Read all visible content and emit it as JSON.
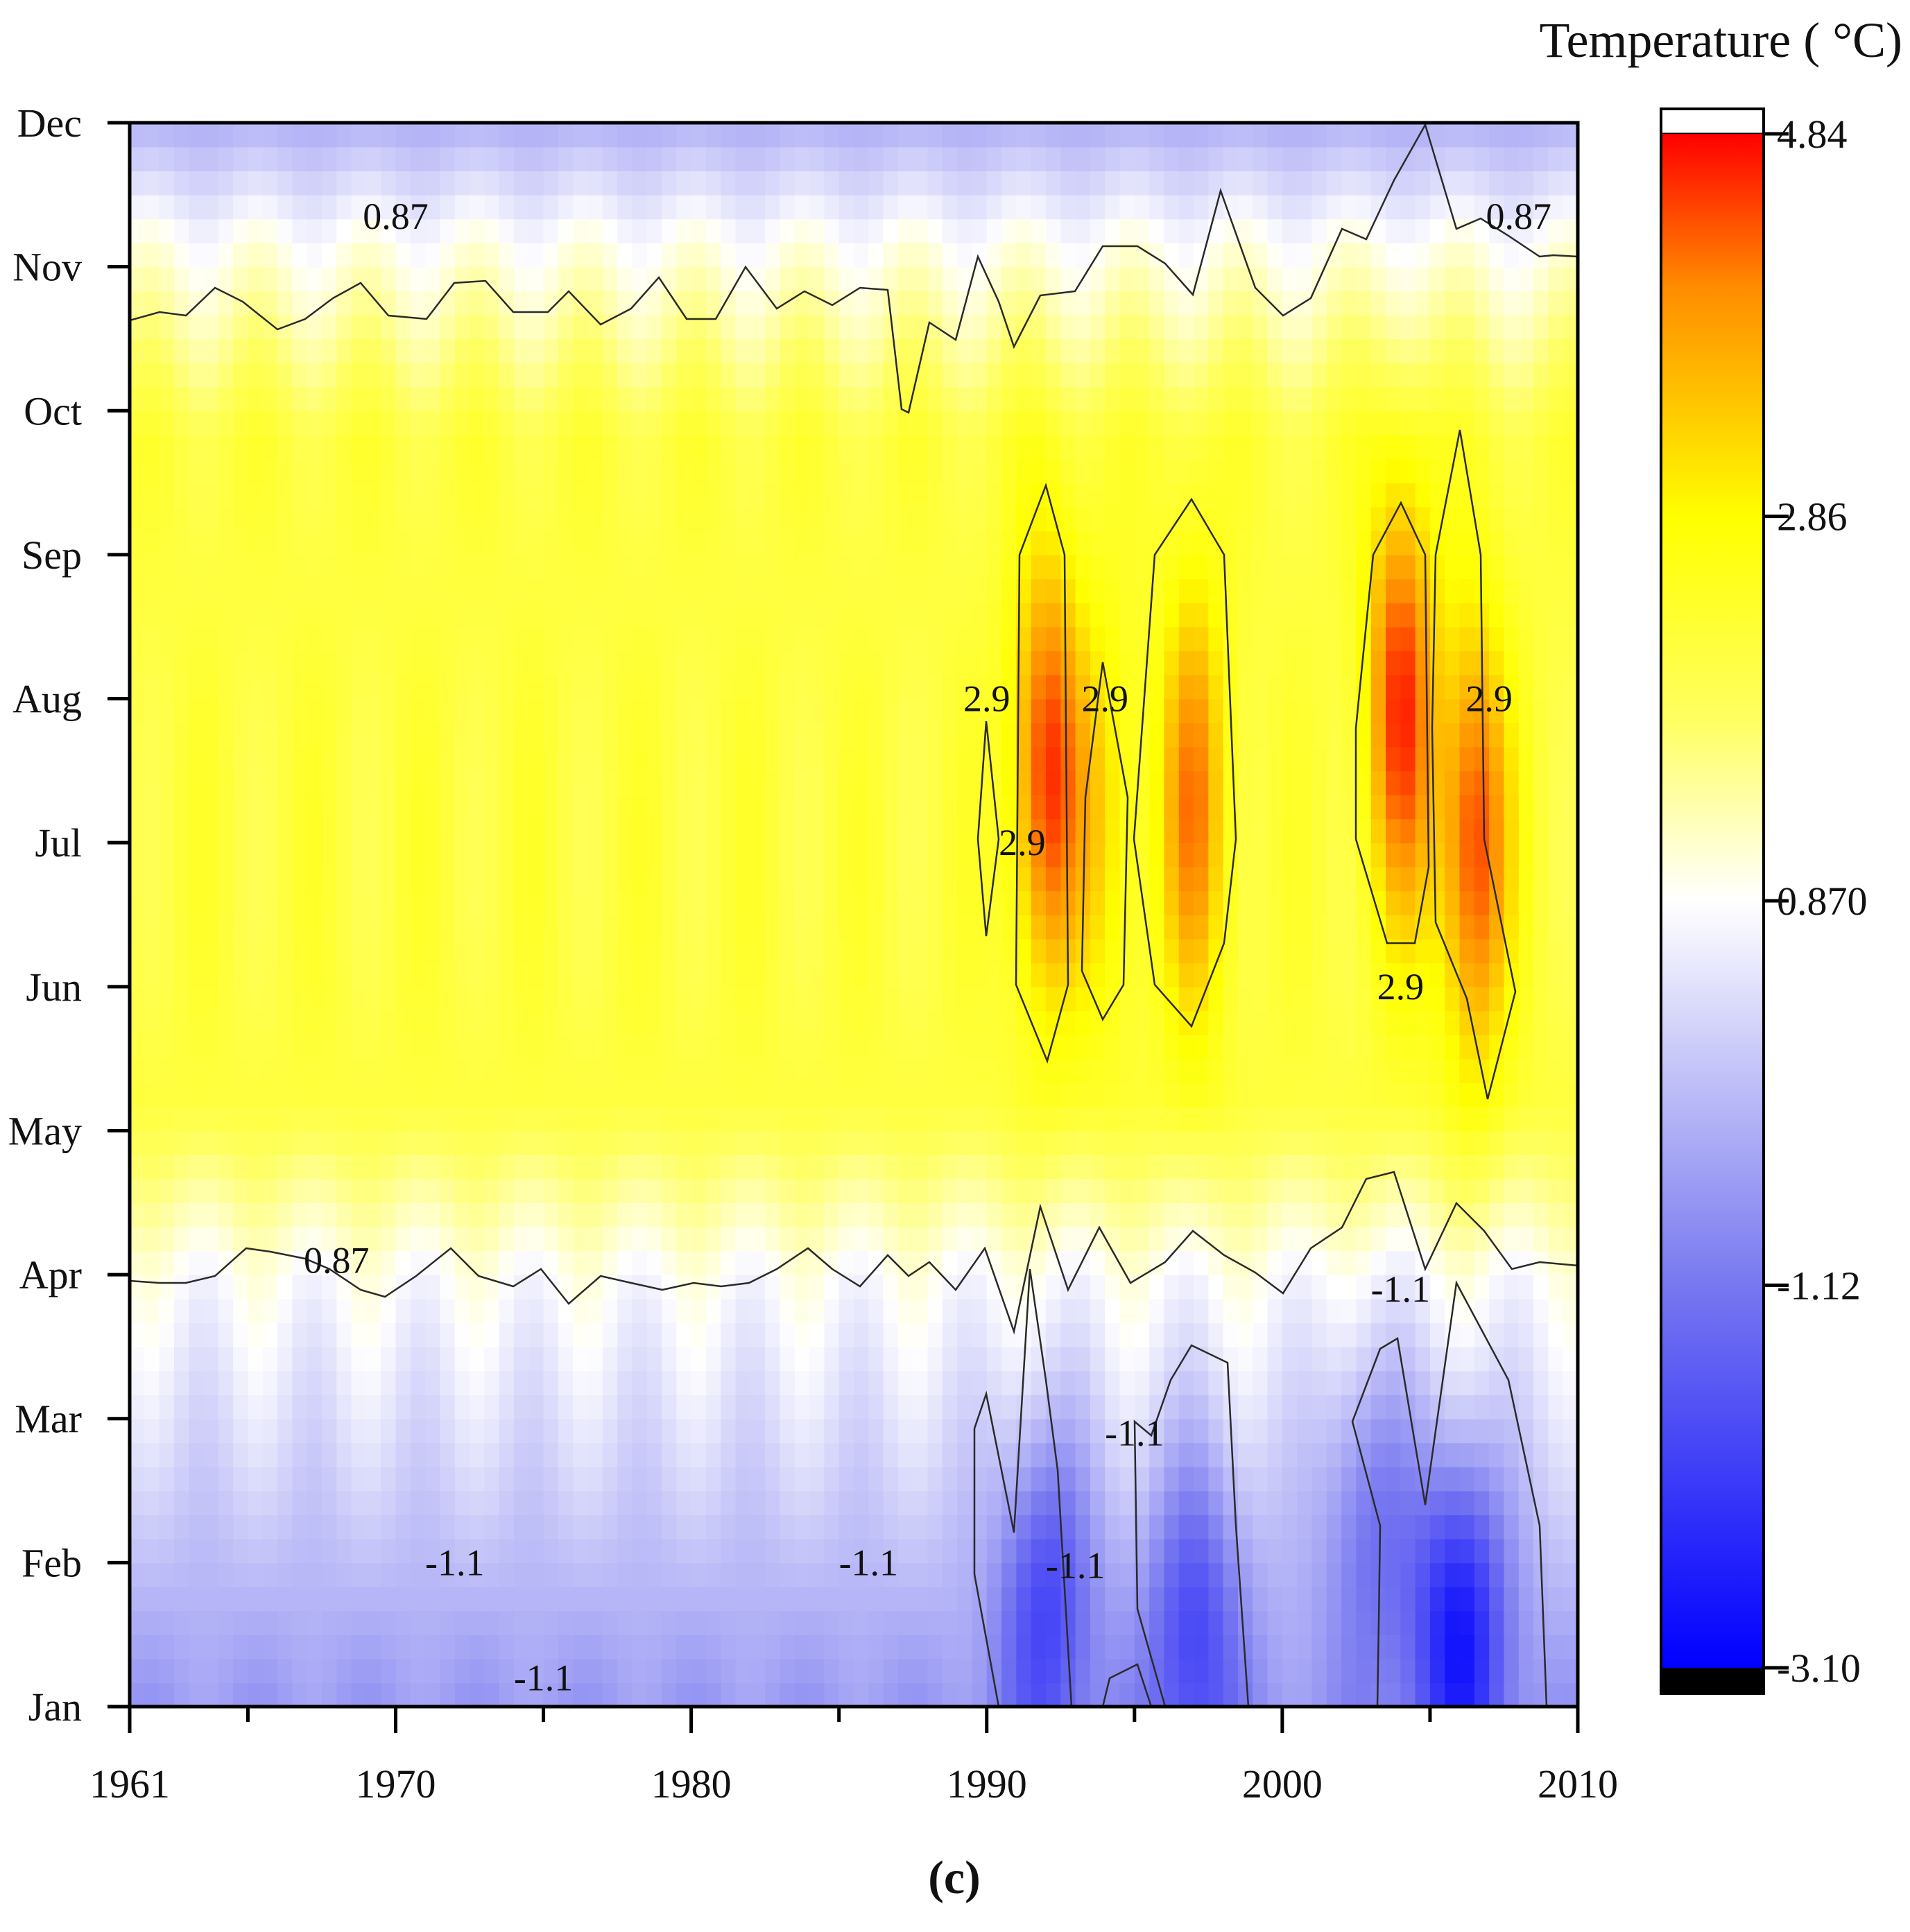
{
  "chart_data": {
    "type": "heatmap",
    "title": "Temperature ( °C)",
    "caption": "(c)",
    "xlabel": "",
    "ylabel": "",
    "x_ticks": [
      1961,
      1970,
      1980,
      1990,
      2000,
      2010
    ],
    "x_range": [
      1961,
      2010
    ],
    "y_ticks": [
      "Jan",
      "Feb",
      "Mar",
      "Apr",
      "May",
      "Jun",
      "Jul",
      "Aug",
      "Sep",
      "Oct",
      "Nov",
      "Dec"
    ],
    "y_range": [
      1,
      12
    ],
    "colorbar": {
      "min": -3.1,
      "max": 4.84,
      "tick_values": [
        4.84,
        2.86,
        0.87,
        -1.12,
        -3.1
      ],
      "tick_labels": [
        "4.84",
        "2.86",
        "0.870",
        "-1.12",
        "-3.10"
      ],
      "colors": {
        "below_min": "#000000",
        "min": "#0000ff",
        "low": "#7878f0",
        "mid": "#ffffff",
        "high": "#ffff00",
        "orange": "#ff8c00",
        "max": "#ff0000",
        "above_max": "#ffffff"
      }
    },
    "contour_levels": [
      0.87,
      2.9,
      -1.1
    ],
    "contour_labels": [
      {
        "text": "0.87",
        "year": 1970.0,
        "month": 11.35
      },
      {
        "text": "0.87",
        "year": 2008.0,
        "month": 11.35
      },
      {
        "text": "0.87",
        "year": 1968.0,
        "month": 4.1
      },
      {
        "text": "2.9",
        "year": 1990.0,
        "month": 8.0
      },
      {
        "text": "2.9",
        "year": 1991.2,
        "month": 7.0
      },
      {
        "text": "2.9",
        "year": 1994.0,
        "month": 8.0
      },
      {
        "text": "2.9",
        "year": 2004.0,
        "month": 6.0
      },
      {
        "text": "2.9",
        "year": 2007.0,
        "month": 8.0
      },
      {
        "text": "-1.1",
        "year": 2004.0,
        "month": 3.9
      },
      {
        "text": "-1.1",
        "year": 1995.0,
        "month": 2.9
      },
      {
        "text": "-1.1",
        "year": 1972.0,
        "month": 2.0
      },
      {
        "text": "-1.1",
        "year": 1986.0,
        "month": 2.0
      },
      {
        "text": "-1.1",
        "year": 1993.0,
        "month": 1.98
      },
      {
        "text": "-1.1",
        "year": 1975.0,
        "month": 1.2
      }
    ],
    "zone_values": {
      "summer_base": 2.2,
      "winter_base": -0.6,
      "hot_spots": [
        {
          "year": 1992,
          "month": 7.5,
          "peak": 4.5
        },
        {
          "year": 1994,
          "month": 7.2,
          "peak": 3.1
        },
        {
          "year": 1997,
          "month": 7.3,
          "peak": 4.0
        },
        {
          "year": 2004,
          "month": 8.0,
          "peak": 4.5
        },
        {
          "year": 2006.5,
          "month": 7.0,
          "peak": 4.5
        }
      ],
      "cold_spots": [
        {
          "year": 1992,
          "month": 1.8,
          "peak": -2.3
        },
        {
          "year": 1997,
          "month": 1.6,
          "peak": -2.2
        },
        {
          "year": 2006,
          "month": 1.6,
          "peak": -3.0
        },
        {
          "year": 2003,
          "month": 2.4,
          "peak": -1.8
        }
      ]
    }
  }
}
